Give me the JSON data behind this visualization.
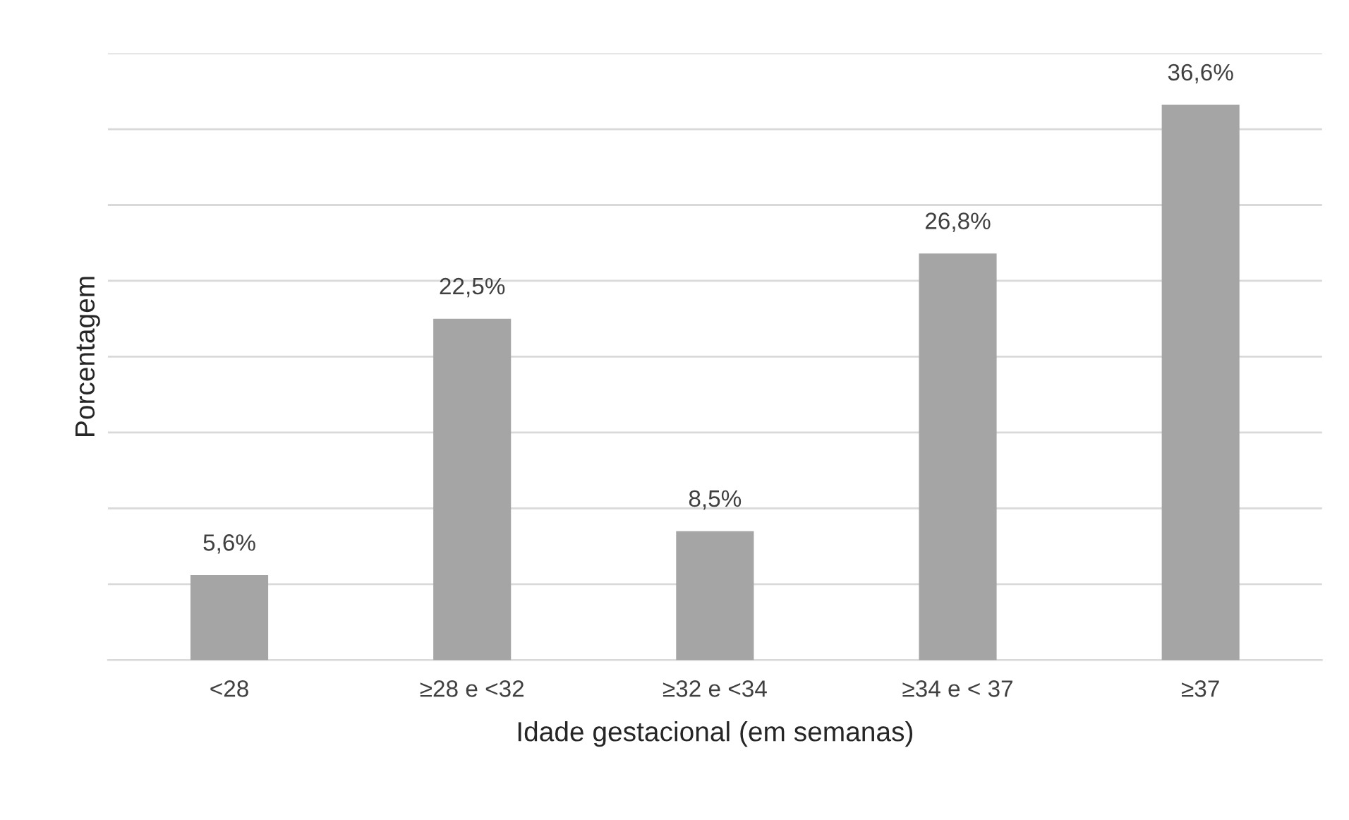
{
  "chart_data": {
    "type": "bar",
    "categories": [
      "<28",
      "≥28 e <32",
      "≥32 e <34",
      "≥34 e < 37",
      "≥37"
    ],
    "values": [
      5.6,
      22.5,
      8.5,
      26.8,
      36.6
    ],
    "value_labels": [
      "5,6%",
      "22,5%",
      "8,5%",
      "26,8%",
      "36,6%"
    ],
    "color": "#a5a5a5",
    "xlabel": "Idade gestacional (em semanas)",
    "ylabel": "Porcentagem",
    "ylim": [
      0,
      40
    ],
    "yticks": [
      {
        "value": 0,
        "label": null
      },
      {
        "value": 5,
        "label": null
      },
      {
        "value": 10,
        "label": null
      },
      {
        "value": 15,
        "label": null
      },
      {
        "value": 20,
        "label": null
      },
      {
        "value": 25,
        "label": null
      },
      {
        "value": 30,
        "label": null
      },
      {
        "value": 35,
        "label": null
      },
      {
        "value": 40,
        "label": null
      }
    ],
    "grid": "y",
    "tick_labels": "x"
  }
}
